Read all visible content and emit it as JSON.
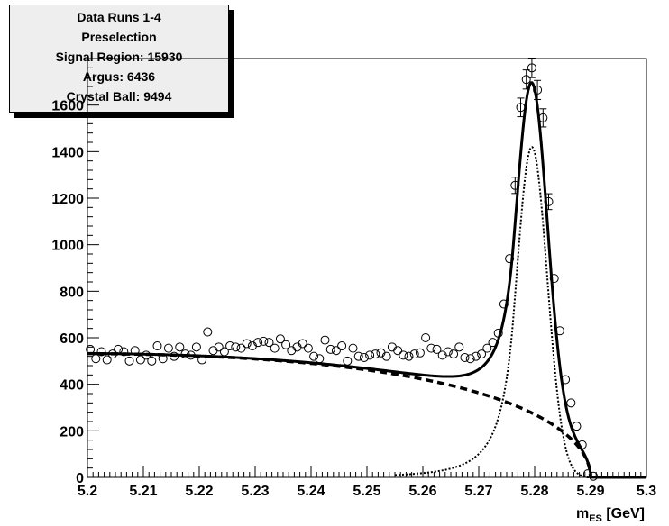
{
  "chart_data": {
    "type": "scatter",
    "stats_box": {
      "lines": [
        "Data Runs 1-4",
        "Preselection",
        "Signal Region: 15930",
        "Argus: 6436",
        "Crystal Ball: 9494"
      ]
    },
    "xlabel_main": "m",
    "xlabel_sub": "ES",
    "xlabel_unit": " [GeV]",
    "ylabel": "",
    "xlim": [
      5.2,
      5.3
    ],
    "ylim": [
      0,
      1800
    ],
    "xticks": [
      5.2,
      5.21,
      5.22,
      5.23,
      5.24,
      5.25,
      5.26,
      5.27,
      5.28,
      5.29,
      5.3
    ],
    "yticks": [
      0,
      200,
      400,
      600,
      800,
      1000,
      1200,
      1400,
      1600
    ],
    "fit": {
      "argus_c0": 532,
      "argus_xi": 13.5,
      "argus_endpoint": 5.29,
      "argus_norm_x": 5.2,
      "cb_amplitude": 1420,
      "cb_mean": 5.2795,
      "cb_sigma": 0.00275,
      "cb_alpha": 1.2,
      "cb_n": 3
    },
    "series": [
      {
        "marker": "open-circle",
        "x": [
          5.2005,
          5.2015,
          5.2025,
          5.2035,
          5.2045,
          5.2055,
          5.2065,
          5.2075,
          5.2085,
          5.2095,
          5.2105,
          5.2115,
          5.2125,
          5.2135,
          5.2145,
          5.2155,
          5.2165,
          5.2175,
          5.2185,
          5.2195,
          5.2205,
          5.2215,
          5.2225,
          5.2235,
          5.2245,
          5.2255,
          5.2265,
          5.2275,
          5.2285,
          5.2295,
          5.2305,
          5.2315,
          5.2325,
          5.2335,
          5.2345,
          5.2355,
          5.2365,
          5.2375,
          5.2385,
          5.2395,
          5.2405,
          5.2415,
          5.2425,
          5.2435,
          5.2445,
          5.2455,
          5.2465,
          5.2475,
          5.2485,
          5.2495,
          5.2505,
          5.2515,
          5.2525,
          5.2535,
          5.2545,
          5.2555,
          5.2565,
          5.2575,
          5.2585,
          5.2595,
          5.2605,
          5.2615,
          5.2625,
          5.2635,
          5.2645,
          5.2655,
          5.2665,
          5.2675,
          5.2685,
          5.2695,
          5.2705,
          5.2715,
          5.2725,
          5.2735,
          5.2745,
          5.2755,
          5.2765,
          5.2775,
          5.2785,
          5.2795,
          5.2805,
          5.2815,
          5.2825,
          5.2835,
          5.2845,
          5.2855,
          5.2865,
          5.2875,
          5.2885,
          5.2895,
          5.2905
        ],
        "y": [
          550,
          510,
          540,
          505,
          530,
          550,
          540,
          500,
          545,
          505,
          525,
          500,
          565,
          510,
          555,
          520,
          560,
          530,
          525,
          560,
          505,
          625,
          545,
          560,
          540,
          565,
          560,
          555,
          575,
          565,
          580,
          585,
          580,
          555,
          595,
          570,
          545,
          560,
          575,
          555,
          520,
          510,
          590,
          550,
          545,
          565,
          500,
          555,
          520,
          515,
          525,
          530,
          535,
          520,
          560,
          545,
          525,
          520,
          530,
          535,
          600,
          555,
          550,
          525,
          540,
          530,
          560,
          515,
          510,
          520,
          530,
          555,
          580,
          620,
          745,
          940,
          1255,
          1590,
          1710,
          1760,
          1665,
          1545,
          1185,
          855,
          630,
          420,
          320,
          220,
          140,
          15,
          5
        ]
      }
    ],
    "error_bars": [
      {
        "x": 5.2775,
        "y": 1590,
        "err": 40
      },
      {
        "x": 5.2785,
        "y": 1710,
        "err": 41
      },
      {
        "x": 5.2795,
        "y": 1760,
        "err": 42
      },
      {
        "x": 5.2805,
        "y": 1665,
        "err": 41
      },
      {
        "x": 5.2815,
        "y": 1545,
        "err": 39
      },
      {
        "x": 5.2765,
        "y": 1255,
        "err": 35
      },
      {
        "x": 5.2825,
        "y": 1185,
        "err": 34
      }
    ],
    "grid": false,
    "legend": "none"
  }
}
